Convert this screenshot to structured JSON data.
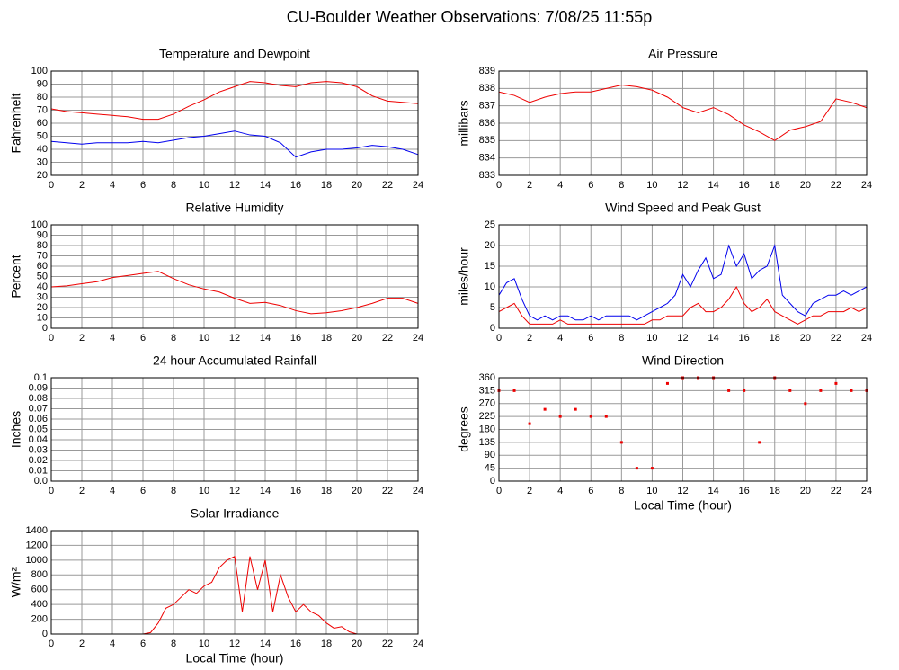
{
  "title": "CU-Boulder Weather Observations: 7/08/25 11:55p",
  "chart_data": [
    {
      "type": "line",
      "title": "Temperature and Dewpoint",
      "y_label": "Fahrenheit",
      "x": [
        0,
        1,
        2,
        3,
        4,
        5,
        6,
        7,
        8,
        9,
        10,
        11,
        12,
        13,
        14,
        15,
        16,
        17,
        18,
        19,
        20,
        21,
        22,
        23,
        24
      ],
      "series": [
        {
          "color": "#ee0000",
          "values": [
            71,
            69,
            68,
            67,
            66,
            65,
            63,
            63,
            67,
            73,
            78,
            84,
            88,
            92,
            91,
            89,
            88,
            91,
            92,
            91,
            88,
            81,
            77,
            76,
            75
          ]
        },
        {
          "color": "#0000ee",
          "values": [
            46,
            45,
            44,
            45,
            45,
            45,
            46,
            45,
            47,
            49,
            50,
            52,
            54,
            51,
            50,
            45,
            34,
            38,
            40,
            40,
            41,
            43,
            42,
            40,
            36
          ]
        }
      ],
      "xlim": [
        0,
        24
      ],
      "xticks": [
        0,
        2,
        4,
        6,
        8,
        10,
        12,
        14,
        16,
        18,
        20,
        22,
        24
      ],
      "ylim": [
        20,
        100
      ],
      "yticks": [
        20,
        30,
        40,
        50,
        60,
        70,
        80,
        90,
        100
      ],
      "grid": true
    },
    {
      "type": "line",
      "title": "Air Pressure",
      "y_label": "millibars",
      "x": [
        0,
        1,
        2,
        3,
        4,
        5,
        6,
        7,
        8,
        9,
        10,
        11,
        12,
        13,
        14,
        15,
        16,
        17,
        18,
        19,
        20,
        21,
        22,
        23,
        24
      ],
      "series": [
        {
          "color": "#ee0000",
          "values": [
            837.8,
            837.6,
            837.2,
            837.5,
            837.7,
            837.8,
            837.8,
            838.0,
            838.2,
            838.1,
            837.9,
            837.5,
            836.9,
            836.6,
            836.9,
            836.5,
            835.9,
            835.5,
            835.0,
            835.6,
            835.8,
            836.1,
            837.4,
            837.2,
            836.9
          ]
        }
      ],
      "xlim": [
        0,
        24
      ],
      "xticks": [
        0,
        2,
        4,
        6,
        8,
        10,
        12,
        14,
        16,
        18,
        20,
        22,
        24
      ],
      "ylim": [
        833,
        839
      ],
      "yticks": [
        833,
        834,
        835,
        836,
        837,
        838,
        839
      ],
      "grid": true
    },
    {
      "type": "line",
      "title": "Relative Humidity",
      "y_label": "Percent",
      "x": [
        0,
        1,
        2,
        3,
        4,
        5,
        6,
        7,
        8,
        9,
        10,
        11,
        12,
        13,
        14,
        15,
        16,
        17,
        18,
        19,
        20,
        21,
        22,
        23,
        24
      ],
      "series": [
        {
          "color": "#ee0000",
          "values": [
            40,
            41,
            43,
            45,
            49,
            51,
            53,
            55,
            48,
            42,
            38,
            35,
            29,
            24,
            25,
            22,
            17,
            14,
            15,
            17,
            20,
            24,
            29,
            29,
            24
          ]
        }
      ],
      "xlim": [
        0,
        24
      ],
      "xticks": [
        0,
        2,
        4,
        6,
        8,
        10,
        12,
        14,
        16,
        18,
        20,
        22,
        24
      ],
      "ylim": [
        0,
        100
      ],
      "yticks": [
        0,
        10,
        20,
        30,
        40,
        50,
        60,
        70,
        80,
        90,
        100
      ],
      "grid": true
    },
    {
      "type": "line",
      "title": "Wind Speed and Peak Gust",
      "y_label": "miles/hour",
      "x": [
        0,
        0.5,
        1,
        1.5,
        2,
        2.5,
        3,
        3.5,
        4,
        4.5,
        5,
        5.5,
        6,
        6.5,
        7,
        7.5,
        8,
        8.5,
        9,
        9.5,
        10,
        10.5,
        11,
        11.5,
        12,
        12.5,
        13,
        13.5,
        14,
        14.5,
        15,
        15.5,
        16,
        16.5,
        17,
        17.5,
        18,
        18.5,
        19,
        19.5,
        20,
        20.5,
        21,
        21.5,
        22,
        22.5,
        23,
        23.5,
        24
      ],
      "series": [
        {
          "color": "#ee0000",
          "values": [
            4,
            5,
            6,
            3,
            1,
            1,
            1,
            1,
            2,
            1,
            1,
            1,
            1,
            1,
            1,
            1,
            1,
            1,
            1,
            1,
            2,
            2,
            3,
            3,
            3,
            5,
            6,
            4,
            4,
            5,
            7,
            10,
            6,
            4,
            5,
            7,
            4,
            3,
            2,
            1,
            2,
            3,
            3,
            4,
            4,
            4,
            5,
            4,
            5
          ]
        },
        {
          "color": "#0000ee",
          "values": [
            8,
            11,
            12,
            7,
            3,
            2,
            3,
            2,
            3,
            3,
            2,
            2,
            3,
            2,
            3,
            3,
            3,
            3,
            2,
            3,
            4,
            5,
            6,
            8,
            13,
            10,
            14,
            17,
            12,
            13,
            20,
            15,
            18,
            12,
            14,
            15,
            20,
            8,
            6,
            4,
            3,
            6,
            7,
            8,
            8,
            9,
            8,
            9,
            10
          ]
        }
      ],
      "xlim": [
        0,
        24
      ],
      "xticks": [
        0,
        2,
        4,
        6,
        8,
        10,
        12,
        14,
        16,
        18,
        20,
        22,
        24
      ],
      "ylim": [
        0,
        25
      ],
      "yticks": [
        0,
        5,
        10,
        15,
        20,
        25
      ],
      "grid": true
    },
    {
      "type": "line",
      "title": "24 hour Accumulated Rainfall",
      "y_label": "Inches",
      "x": [
        0,
        1,
        2,
        3,
        4,
        5,
        6,
        7,
        8,
        9,
        10,
        11,
        12,
        13,
        14,
        15,
        16,
        17,
        18,
        19,
        20,
        21,
        22,
        23,
        24
      ],
      "series": [
        {
          "color": "#ee0000",
          "values": [
            0,
            0,
            0,
            0,
            0,
            0,
            0,
            0,
            0,
            0,
            0,
            0,
            0,
            0,
            0,
            0,
            0,
            0,
            0,
            0,
            0,
            0,
            0,
            0,
            0
          ]
        }
      ],
      "xlim": [
        0,
        24
      ],
      "xticks": [
        0,
        2,
        4,
        6,
        8,
        10,
        12,
        14,
        16,
        18,
        20,
        22,
        24
      ],
      "ylim": [
        0,
        0.1
      ],
      "yticks": [
        {
          "value": 0,
          "label": "0.0"
        },
        0.01,
        0.02,
        0.03,
        0.04,
        0.05,
        0.06,
        0.07,
        0.08,
        0.09,
        0.1
      ],
      "grid": true
    },
    {
      "type": "scatter",
      "title": "Wind Direction",
      "y_label": "degrees",
      "x_label": "Local Time (hour)",
      "x": [
        0,
        1,
        2,
        3,
        4,
        5,
        6,
        7,
        8,
        9,
        10,
        11,
        12,
        13,
        14,
        15,
        16,
        17,
        18,
        19,
        20,
        21,
        22,
        23,
        24
      ],
      "series": [
        {
          "color": "#ee0000",
          "values": [
            315,
            315,
            200,
            250,
            225,
            250,
            225,
            225,
            135,
            45,
            45,
            340,
            360,
            360,
            360,
            315,
            315,
            135,
            360,
            315,
            270,
            315,
            340,
            315,
            315
          ]
        }
      ],
      "xlim": [
        0,
        24
      ],
      "xticks": [
        0,
        2,
        4,
        6,
        8,
        10,
        12,
        14,
        16,
        18,
        20,
        22,
        24
      ],
      "ylim": [
        0,
        360
      ],
      "yticks": [
        0,
        45,
        90,
        135,
        180,
        225,
        270,
        315,
        360
      ],
      "grid": true
    },
    {
      "type": "line",
      "title": "Solar Irradiance",
      "y_label": "W/m²",
      "x_label": "Local Time (hour)",
      "x": [
        0,
        0.5,
        1,
        1.5,
        2,
        2.5,
        3,
        3.5,
        4,
        4.5,
        5,
        5.5,
        6,
        6.5,
        7,
        7.5,
        8,
        8.5,
        9,
        9.5,
        10,
        10.5,
        11,
        11.5,
        12,
        12.5,
        13,
        13.5,
        14,
        14.5,
        15,
        15.5,
        16,
        16.5,
        17,
        17.5,
        18,
        18.5,
        19,
        19.5,
        20,
        20.5,
        21,
        21.5,
        22,
        22.5,
        23,
        23.5,
        24
      ],
      "series": [
        {
          "color": "#ee0000",
          "values": [
            0,
            0,
            0,
            0,
            0,
            0,
            0,
            0,
            0,
            0,
            0,
            0,
            0,
            20,
            150,
            350,
            400,
            500,
            600,
            550,
            650,
            700,
            900,
            1000,
            1050,
            300,
            1050,
            600,
            1000,
            300,
            800,
            500,
            300,
            400,
            300,
            250,
            150,
            80,
            100,
            30,
            0,
            0,
            0,
            0,
            0,
            0,
            0,
            0,
            0
          ]
        }
      ],
      "xlim": [
        0,
        24
      ],
      "xticks": [
        0,
        2,
        4,
        6,
        8,
        10,
        12,
        14,
        16,
        18,
        20,
        22,
        24
      ],
      "ylim": [
        0,
        1400
      ],
      "yticks": [
        0,
        200,
        400,
        600,
        800,
        1000,
        1200,
        1400
      ],
      "grid": true
    }
  ]
}
